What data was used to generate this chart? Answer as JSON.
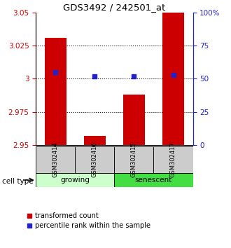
{
  "title": "GDS3492 / 242501_at",
  "samples": [
    "GSM302414",
    "GSM302416",
    "GSM302415",
    "GSM302417"
  ],
  "bar_values": [
    3.031,
    2.957,
    2.988,
    3.05
  ],
  "percentile_values": [
    55,
    52,
    52,
    53
  ],
  "bar_color": "#cc0000",
  "percentile_color": "#2222cc",
  "ylim_left": [
    2.95,
    3.05
  ],
  "ylim_right": [
    0,
    100
  ],
  "yticks_left": [
    2.95,
    2.975,
    3.0,
    3.025,
    3.05
  ],
  "ytick_labels_left": [
    "2.95",
    "2.975",
    "3",
    "3.025",
    "3.05"
  ],
  "yticks_right": [
    0,
    25,
    50,
    75,
    100
  ],
  "ytick_labels_right": [
    "0",
    "25",
    "50",
    "75",
    "100%"
  ],
  "grid_ticks": [
    2.975,
    3.0,
    3.025
  ],
  "groups": [
    {
      "label": "growing",
      "indices": [
        0,
        1
      ],
      "color": "#ccffcc"
    },
    {
      "label": "senescent",
      "indices": [
        2,
        3
      ],
      "color": "#44dd44"
    }
  ],
  "bar_width": 0.55,
  "plot_bg_color": "#ffffff",
  "sample_box_color": "#cccccc",
  "legend_items": [
    {
      "label": "transformed count",
      "color": "#cc0000"
    },
    {
      "label": "percentile rank within the sample",
      "color": "#2222cc"
    }
  ],
  "cell_type_label": "cell type",
  "left_axis_color": "#cc0000",
  "right_axis_color": "#2222cc"
}
